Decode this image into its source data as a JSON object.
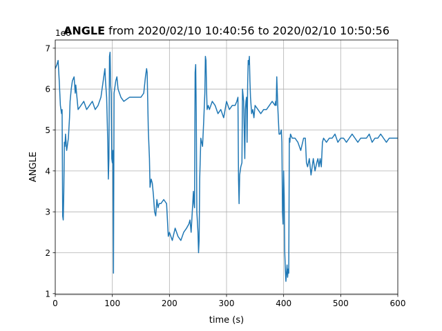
{
  "chart_data": {
    "type": "line",
    "title": {
      "bold_part": "ANGLE",
      "rest": " from 2020/02/10 10:40:56 to 2020/02/10 10:50:56"
    },
    "xlabel": "time (s)",
    "ylabel": "ANGLE",
    "offset_label": "1e6",
    "xlim": [
      0,
      600
    ],
    "ylim": [
      0.98,
      7.2
    ],
    "xticks": [
      0,
      100,
      200,
      300,
      400,
      500,
      600
    ],
    "yticks": [
      1,
      2,
      3,
      4,
      5,
      6,
      7
    ],
    "grid": true,
    "line_color": "#1f77b4",
    "series": [
      {
        "x": [
          0,
          3,
          5,
          7,
          9,
          11,
          12,
          13,
          14,
          15,
          16,
          17,
          18,
          20,
          23,
          25,
          26,
          28,
          30,
          33,
          35,
          36,
          38,
          40,
          45,
          50,
          55,
          60,
          65,
          70,
          75,
          80,
          85,
          87,
          88,
          90,
          92,
          93,
          94,
          95,
          96,
          97,
          98,
          99,
          100,
          101,
          102,
          103,
          104,
          106,
          108,
          110,
          115,
          120,
          130,
          140,
          150,
          155,
          158,
          160,
          161,
          162,
          163,
          165,
          166,
          168,
          170,
          172,
          174,
          176,
          178,
          180,
          182,
          185,
          190,
          195,
          198,
          200,
          205,
          210,
          215,
          220,
          225,
          230,
          234,
          236,
          238,
          240,
          242,
          243,
          244,
          245,
          246,
          247,
          248,
          250,
          251,
          252,
          253,
          255,
          258,
          260,
          262,
          263,
          264,
          265,
          266,
          268,
          270,
          275,
          280,
          285,
          290,
          295,
          300,
          305,
          310,
          315,
          318,
          320,
          321,
          322,
          323,
          325,
          327,
          328,
          330,
          332,
          333,
          334,
          335,
          336,
          337,
          338,
          339,
          340,
          341,
          342,
          344,
          346,
          348,
          350,
          355,
          360,
          365,
          370,
          375,
          380,
          385,
          386,
          387,
          388,
          389,
          390,
          392,
          394,
          396,
          397,
          398,
          399,
          400,
          401,
          402,
          403,
          404,
          405,
          406,
          407,
          408,
          409,
          410,
          411,
          412,
          415,
          420,
          425,
          430,
          435,
          438,
          440,
          442,
          445,
          448,
          450,
          452,
          455,
          458,
          460,
          462,
          464,
          466,
          468,
          470,
          475,
          480,
          485,
          490,
          495,
          500,
          505,
          510,
          515,
          520,
          525,
          530,
          535,
          540,
          545,
          550,
          555,
          560,
          565,
          570,
          575,
          580,
          585,
          590,
          595,
          600
        ],
        "y": [
          6.5,
          6.6,
          6.7,
          6.2,
          5.6,
          5.4,
          5.5,
          2.9,
          2.8,
          3.5,
          4.7,
          4.6,
          4.9,
          4.5,
          4.8,
          5.3,
          5.7,
          6.0,
          6.2,
          6.3,
          5.9,
          6.1,
          5.8,
          5.5,
          5.6,
          5.7,
          5.5,
          5.6,
          5.7,
          5.5,
          5.6,
          5.8,
          6.3,
          6.5,
          6.2,
          5.8,
          4.7,
          3.8,
          4.3,
          6.8,
          6.9,
          6.1,
          5.9,
          4.3,
          4.2,
          4.5,
          1.5,
          5.9,
          6.0,
          6.2,
          6.3,
          6.0,
          5.8,
          5.7,
          5.8,
          5.8,
          5.8,
          5.9,
          6.3,
          6.5,
          6.4,
          5.7,
          5.0,
          4.3,
          3.6,
          3.8,
          3.7,
          3.4,
          3.0,
          2.9,
          3.3,
          3.1,
          3.2,
          3.2,
          3.3,
          3.2,
          2.4,
          2.5,
          2.3,
          2.6,
          2.4,
          2.3,
          2.5,
          2.6,
          2.7,
          2.8,
          2.5,
          3.0,
          3.5,
          3.2,
          3.1,
          6.4,
          6.6,
          5.4,
          3.0,
          2.5,
          2.0,
          2.3,
          3.8,
          4.8,
          4.6,
          5.2,
          5.9,
          6.8,
          6.7,
          6.0,
          5.5,
          5.6,
          5.5,
          5.7,
          5.6,
          5.4,
          5.5,
          5.3,
          5.7,
          5.5,
          5.6,
          5.6,
          5.7,
          5.8,
          3.8,
          3.2,
          3.9,
          4.1,
          4.2,
          6.0,
          5.7,
          4.3,
          5.5,
          5.7,
          5.8,
          4.7,
          6.1,
          6.7,
          6.6,
          6.8,
          6.2,
          5.8,
          5.4,
          5.5,
          5.3,
          5.6,
          5.5,
          5.4,
          5.5,
          5.5,
          5.6,
          5.7,
          5.6,
          5.7,
          5.6,
          6.3,
          5.9,
          5.5,
          4.9,
          4.9,
          5.0,
          4.7,
          3.0,
          2.7,
          4.0,
          3.4,
          2.0,
          1.6,
          1.3,
          1.5,
          1.7,
          1.4,
          1.6,
          1.5,
          4.8,
          4.7,
          4.9,
          4.8,
          4.8,
          4.7,
          4.5,
          4.8,
          4.8,
          4.2,
          4.1,
          4.3,
          3.9,
          4.1,
          4.3,
          4.0,
          4.2,
          4.3,
          4.1,
          4.3,
          4.1,
          4.7,
          4.8,
          4.7,
          4.8,
          4.8,
          4.9,
          4.7,
          4.8,
          4.8,
          4.7,
          4.8,
          4.9,
          4.8,
          4.7,
          4.8,
          4.8,
          4.8,
          4.9,
          4.7,
          4.8,
          4.8,
          4.9,
          4.8,
          4.7,
          4.8,
          4.8,
          4.8,
          4.8
        ]
      }
    ]
  }
}
